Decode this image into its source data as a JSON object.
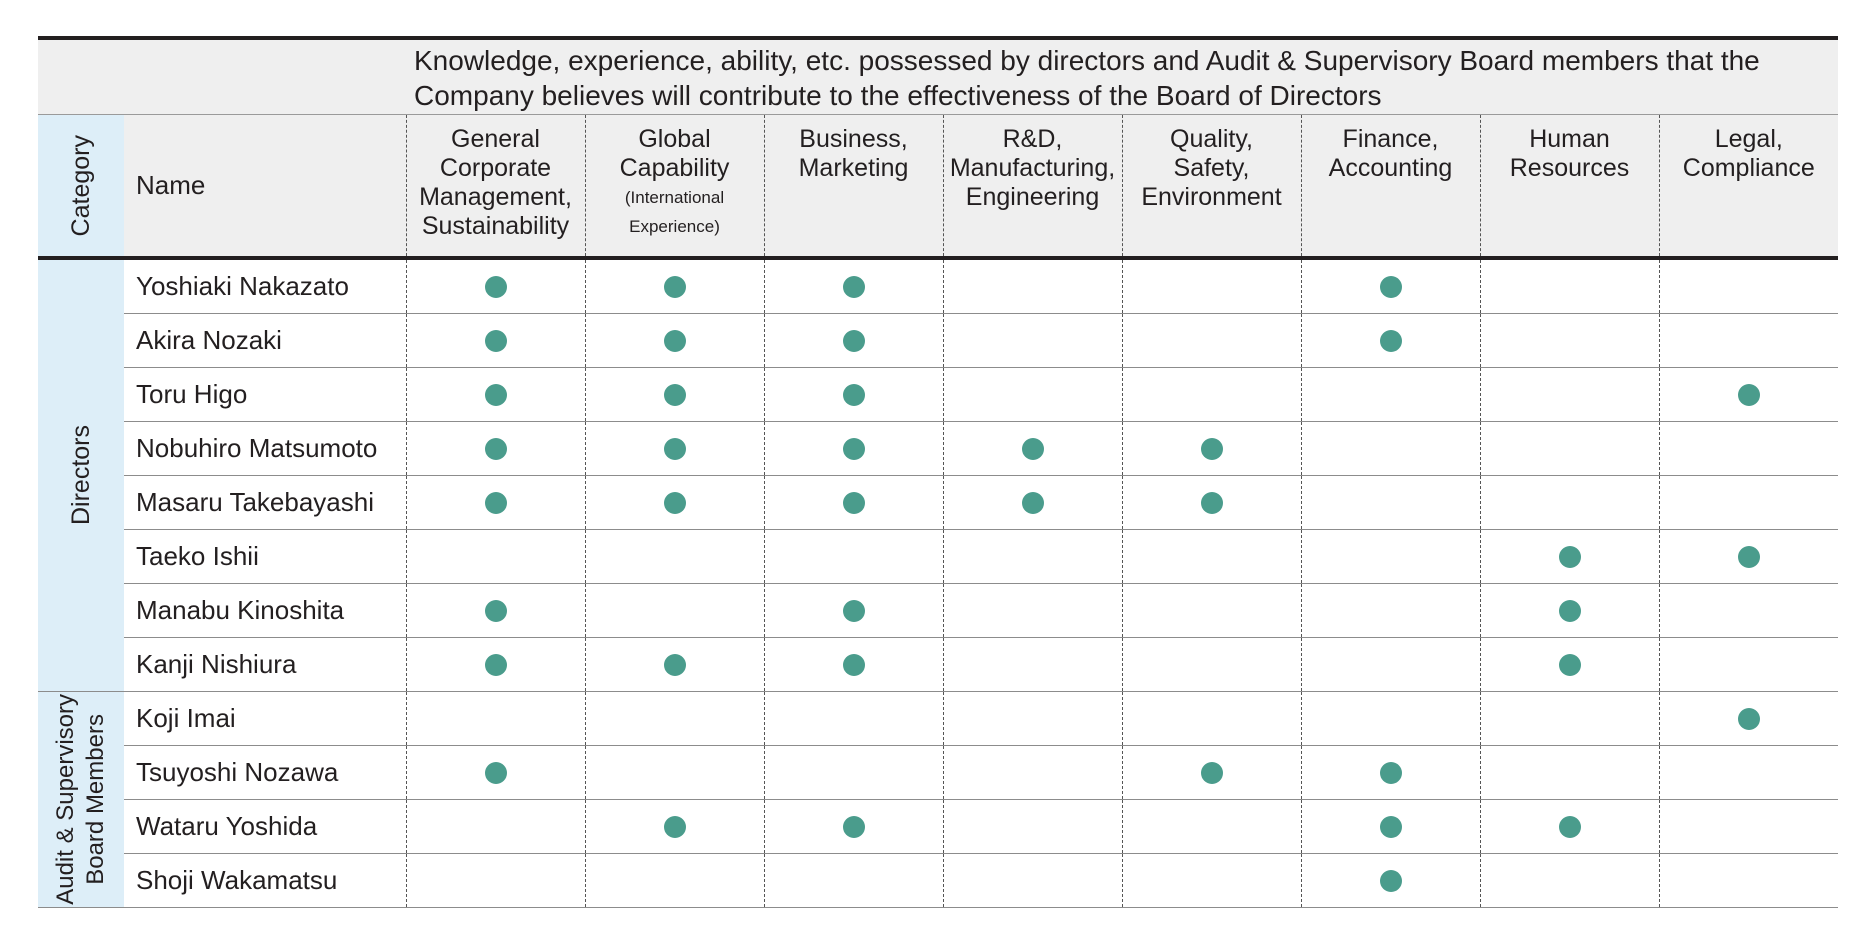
{
  "heading": "Knowledge, experience, ability, etc. possessed by directors and Audit & Supervisory Board members that the Company believes will contribute to the effectiveness of the Board of Directors",
  "columns": {
    "category": "Category",
    "name": "Name"
  },
  "skills": [
    {
      "label": "General\nCorporate\nManagement,\nSustainability",
      "note": ""
    },
    {
      "label": "Global\nCapability",
      "note": "(International\nExperience)"
    },
    {
      "label": "Business,\nMarketing",
      "note": ""
    },
    {
      "label": "R&D,\nManufacturing,\nEngineering",
      "note": ""
    },
    {
      "label": "Quality,\nSafety,\nEnvironment",
      "note": ""
    },
    {
      "label": "Finance,\nAccounting",
      "note": ""
    },
    {
      "label": "Human\nResources",
      "note": ""
    },
    {
      "label": "Legal,\nCompliance",
      "note": ""
    }
  ],
  "groups": [
    {
      "category": "Directors",
      "members": [
        {
          "name": "Yoshiaki Nakazato",
          "marks": [
            1,
            1,
            1,
            0,
            0,
            1,
            0,
            0
          ]
        },
        {
          "name": "Akira Nozaki",
          "marks": [
            1,
            1,
            1,
            0,
            0,
            1,
            0,
            0
          ]
        },
        {
          "name": "Toru Higo",
          "marks": [
            1,
            1,
            1,
            0,
            0,
            0,
            0,
            1
          ]
        },
        {
          "name": "Nobuhiro Matsumoto",
          "marks": [
            1,
            1,
            1,
            1,
            1,
            0,
            0,
            0
          ]
        },
        {
          "name": "Masaru Takebayashi",
          "marks": [
            1,
            1,
            1,
            1,
            1,
            0,
            0,
            0
          ]
        },
        {
          "name": "Taeko Ishii",
          "marks": [
            0,
            0,
            0,
            0,
            0,
            0,
            1,
            1
          ]
        },
        {
          "name": "Manabu Kinoshita",
          "marks": [
            1,
            0,
            1,
            0,
            0,
            0,
            1,
            0
          ]
        },
        {
          "name": "Kanji Nishiura",
          "marks": [
            1,
            1,
            1,
            0,
            0,
            0,
            1,
            0
          ]
        }
      ]
    },
    {
      "category": "Audit & Supervisory\nBoard Members",
      "members": [
        {
          "name": "Koji Imai",
          "marks": [
            0,
            0,
            0,
            0,
            0,
            0,
            0,
            1
          ]
        },
        {
          "name": "Tsuyoshi Nozawa",
          "marks": [
            1,
            0,
            0,
            0,
            1,
            1,
            0,
            0
          ]
        },
        {
          "name": "Wataru Yoshida",
          "marks": [
            0,
            1,
            1,
            0,
            0,
            1,
            1,
            0
          ]
        },
        {
          "name": "Shoji Wakamatsu",
          "marks": [
            0,
            0,
            0,
            0,
            0,
            1,
            0,
            0
          ]
        }
      ]
    }
  ],
  "colors": {
    "dot": "#4a9c8c",
    "category_band": "#ddeef8",
    "header_band": "#efefef"
  }
}
